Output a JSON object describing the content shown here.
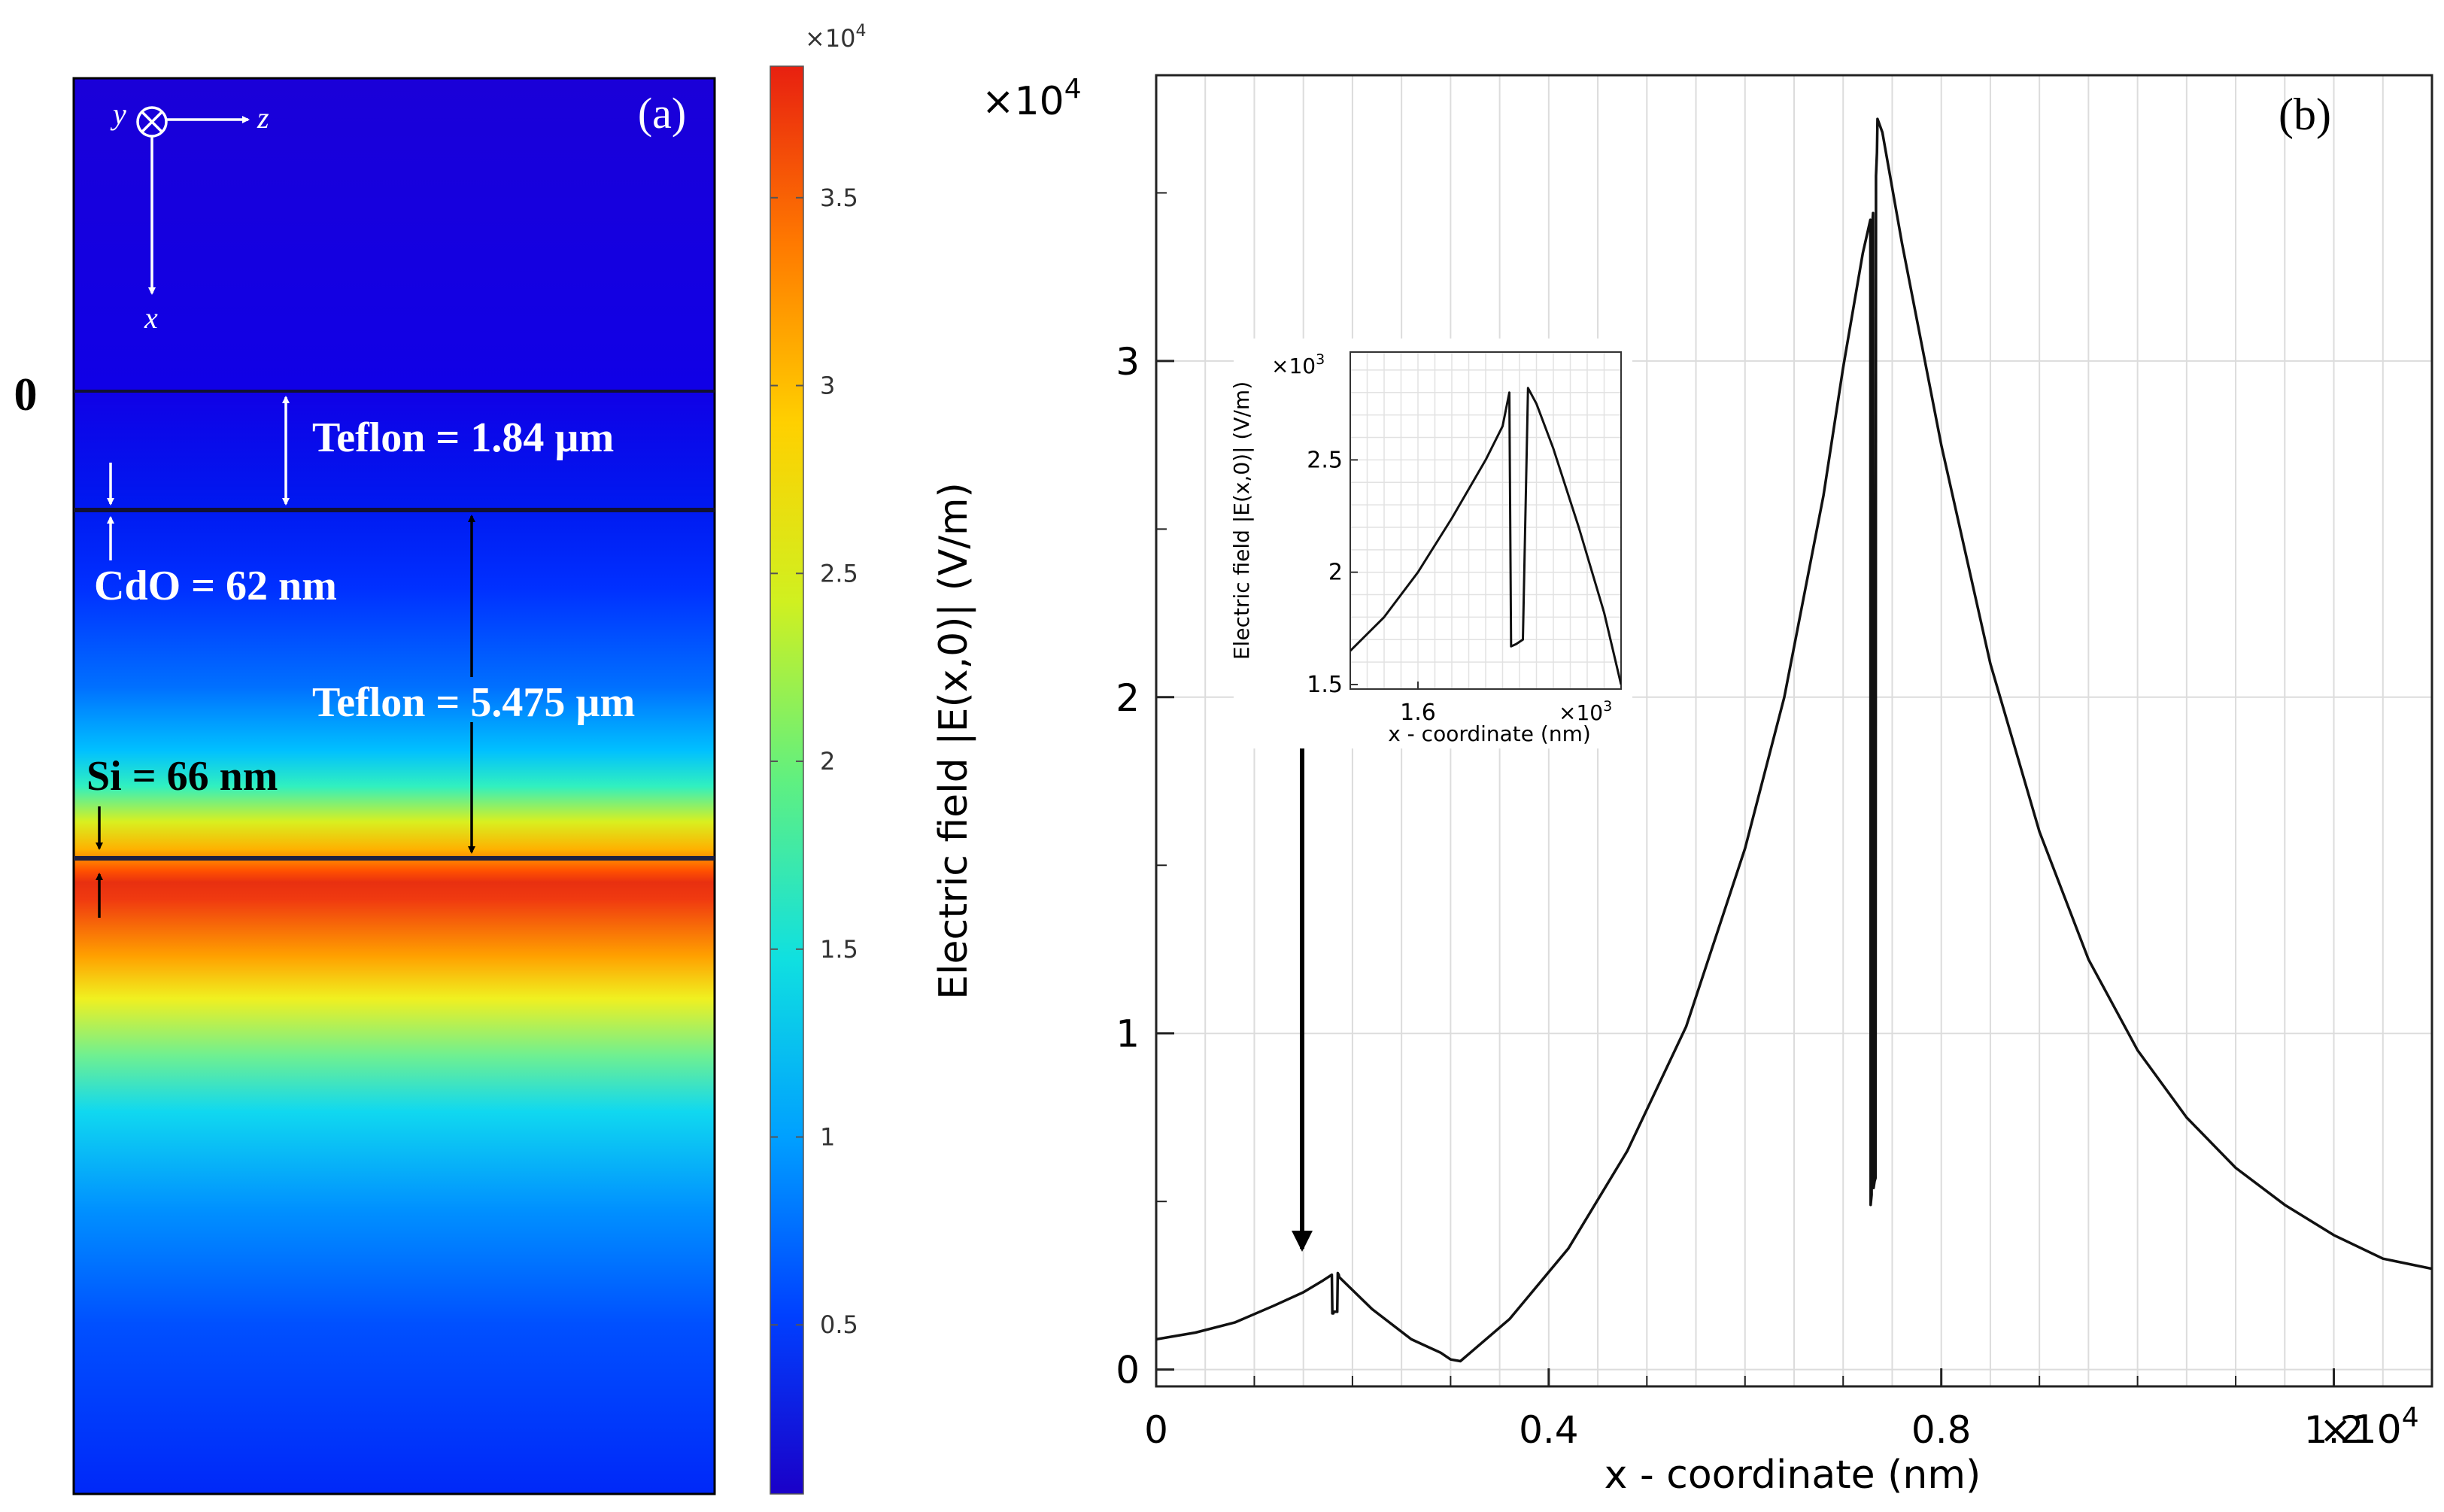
{
  "panel_a": {
    "panel_label": "(a)",
    "zero_label": "0",
    "axes": {
      "y": "y",
      "z": "z",
      "x": "x"
    },
    "annotations": {
      "teflon_top": "Teflon = 1.84 µm",
      "cdo": "CdO = 62 nm",
      "teflon_mid": "Teflon = 5.475 µm",
      "si": "Si = 66 nm"
    }
  },
  "colorbar": {
    "multiplier_base": "×10",
    "multiplier_exp": "4",
    "ticks": [
      "0.5",
      "1",
      "1.5",
      "2",
      "2.5",
      "3",
      "3.5"
    ],
    "tick_values": [
      0.5,
      1,
      1.5,
      2,
      2.5,
      3,
      3.5
    ],
    "range": [
      0.05,
      3.85
    ],
    "colors": [
      "#1a00c8",
      "#0040ff",
      "#00a0ff",
      "#10e0e0",
      "#60f080",
      "#d0f020",
      "#ffd000",
      "#ff7a00",
      "#e82010"
    ]
  },
  "panel_b": {
    "panel_label": "(b)",
    "y_multiplier_base": "×10",
    "y_multiplier_exp": "4",
    "x_multiplier_base": "×10",
    "x_multiplier_exp": "4",
    "inset": {
      "ylabel": "Electric field |E(x,0)| (V/m)",
      "xlabel": "x - coordinate (nm)",
      "y_multiplier_base": "×10",
      "y_multiplier_exp": "3",
      "x_multiplier_base": "×10",
      "x_multiplier_exp": "3",
      "yticks": [
        "1.5",
        "2",
        "2.5"
      ],
      "xticks": [
        "1.6"
      ]
    }
  },
  "chart_data": {
    "type": "line",
    "title": "",
    "xlabel": "x - coordinate (nm)",
    "ylabel": "Electric field |E(x,0)| (V/m)",
    "x_unit_multiplier": 10000,
    "y_unit_multiplier": 10000,
    "xlim": [
      0,
      1.3
    ],
    "ylim": [
      -0.05,
      3.85
    ],
    "xticks": [
      0,
      0.4,
      0.8,
      1.2
    ],
    "xtick_labels": [
      "0",
      "0.4",
      "0.8",
      "1.2"
    ],
    "yticks": [
      0,
      1,
      2,
      3
    ],
    "ytick_labels": [
      "0",
      "1",
      "2",
      "3"
    ],
    "grid": true,
    "series": [
      {
        "name": "|E(x,0)|",
        "x": [
          0,
          0.04,
          0.08,
          0.12,
          0.15,
          0.17,
          0.179,
          0.1795,
          0.1805,
          0.181,
          0.1845,
          0.185,
          0.186,
          0.1865,
          0.22,
          0.26,
          0.29,
          0.3,
          0.31,
          0.32,
          0.36,
          0.42,
          0.48,
          0.54,
          0.6,
          0.64,
          0.68,
          0.7,
          0.72,
          0.7277,
          0.728,
          0.729,
          0.7295,
          0.7305,
          0.731,
          0.732,
          0.733,
          0.7335,
          0.7345,
          0.735,
          0.74,
          0.76,
          0.8,
          0.85,
          0.9,
          0.95,
          1.0,
          1.05,
          1.1,
          1.15,
          1.2,
          1.25,
          1.3
        ],
        "y": [
          0.09,
          0.11,
          0.14,
          0.19,
          0.23,
          0.265,
          0.282,
          0.167,
          0.167,
          0.172,
          0.172,
          0.287,
          0.282,
          0.275,
          0.18,
          0.09,
          0.05,
          0.03,
          0.025,
          0.05,
          0.15,
          0.36,
          0.65,
          1.02,
          1.55,
          2.0,
          2.6,
          2.98,
          3.32,
          3.42,
          0.49,
          0.52,
          3.4,
          3.44,
          0.54,
          0.56,
          0.57,
          3.55,
          3.62,
          3.72,
          3.68,
          3.35,
          2.75,
          2.1,
          1.6,
          1.22,
          0.95,
          0.75,
          0.6,
          0.49,
          0.4,
          0.33,
          0.3
        ]
      }
    ],
    "inset_data": {
      "xlim": [
        1.52,
        1.84
      ],
      "ylim": [
        1.48,
        2.98
      ],
      "x_unit_multiplier": 1000,
      "y_unit_multiplier": 1000,
      "x": [
        1.52,
        1.56,
        1.6,
        1.64,
        1.68,
        1.7,
        1.708,
        1.71,
        1.716,
        1.724,
        1.73,
        1.74,
        1.76,
        1.79,
        1.82,
        1.84
      ],
      "y": [
        1.65,
        1.8,
        2.0,
        2.24,
        2.5,
        2.65,
        2.8,
        1.67,
        1.68,
        1.7,
        2.82,
        2.75,
        2.55,
        2.2,
        1.82,
        1.5
      ]
    }
  }
}
